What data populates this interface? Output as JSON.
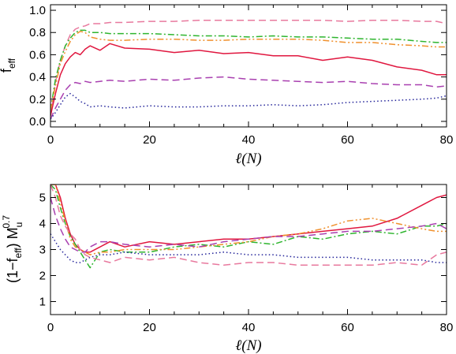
{
  "chart_data": [
    {
      "type": "line",
      "xlabel": "ℓ(N)",
      "ylabel": {
        "main": "f",
        "sub": "eff"
      },
      "xlim": [
        0,
        80
      ],
      "ylim": [
        -0.05,
        1.05
      ],
      "xticks": [
        0,
        20,
        40,
        60,
        80
      ],
      "yticks": [
        0.0,
        0.2,
        0.4,
        0.6,
        0.8,
        1.0
      ],
      "ytick_labels": [
        "0.0",
        "0.2",
        "0.4",
        "0.6",
        "0.8",
        "1.0"
      ],
      "grid": false,
      "x": [
        0,
        1,
        2,
        3,
        4,
        5,
        6,
        7,
        8,
        10,
        12,
        15,
        20,
        25,
        30,
        35,
        40,
        45,
        50,
        55,
        60,
        65,
        70,
        75,
        78,
        80
      ],
      "series": [
        {
          "color": "#e8799e",
          "style": "dashed",
          "values": [
            0.05,
            0.35,
            0.55,
            0.68,
            0.78,
            0.83,
            0.85,
            0.86,
            0.88,
            0.88,
            0.89,
            0.89,
            0.9,
            0.9,
            0.91,
            0.91,
            0.91,
            0.91,
            0.91,
            0.91,
            0.9,
            0.91,
            0.91,
            0.9,
            0.9,
            0.88
          ]
        },
        {
          "color": "#2fb52f",
          "style": "dash-dot",
          "values": [
            0.1,
            0.38,
            0.55,
            0.68,
            0.75,
            0.8,
            0.82,
            0.82,
            0.8,
            0.8,
            0.79,
            0.79,
            0.79,
            0.78,
            0.77,
            0.77,
            0.76,
            0.77,
            0.76,
            0.76,
            0.75,
            0.74,
            0.74,
            0.72,
            0.71,
            0.71
          ]
        },
        {
          "color": "#f0912e",
          "style": "dash-dot-dot",
          "values": [
            0.1,
            0.32,
            0.52,
            0.63,
            0.72,
            0.78,
            0.81,
            0.8,
            0.76,
            0.74,
            0.73,
            0.73,
            0.74,
            0.74,
            0.73,
            0.73,
            0.74,
            0.74,
            0.74,
            0.73,
            0.71,
            0.71,
            0.69,
            0.68,
            0.67,
            0.67
          ]
        },
        {
          "color": "#e0173f",
          "style": "solid",
          "values": [
            0.05,
            0.25,
            0.42,
            0.52,
            0.58,
            0.62,
            0.6,
            0.65,
            0.68,
            0.64,
            0.7,
            0.66,
            0.65,
            0.62,
            0.64,
            0.61,
            0.62,
            0.59,
            0.59,
            0.55,
            0.58,
            0.55,
            0.49,
            0.46,
            0.42,
            0.42
          ]
        },
        {
          "color": "#a940b0",
          "style": "dashed",
          "values": [
            0.02,
            0.12,
            0.2,
            0.28,
            0.33,
            0.35,
            0.34,
            0.36,
            0.35,
            0.36,
            0.37,
            0.36,
            0.38,
            0.37,
            0.39,
            0.4,
            0.38,
            0.37,
            0.36,
            0.35,
            0.36,
            0.34,
            0.33,
            0.33,
            0.31,
            0.32
          ]
        },
        {
          "color": "#24249a",
          "style": "dotted",
          "values": [
            0.02,
            0.08,
            0.15,
            0.22,
            0.25,
            0.22,
            0.18,
            0.16,
            0.13,
            0.14,
            0.13,
            0.12,
            0.14,
            0.13,
            0.13,
            0.14,
            0.14,
            0.15,
            0.14,
            0.15,
            0.17,
            0.18,
            0.19,
            0.2,
            0.21,
            0.23
          ]
        }
      ]
    },
    {
      "type": "line",
      "xlabel": "ℓ(N)",
      "ylabel": {
        "main": "(1−f",
        "sub": "eff",
        "mid": ") M",
        "sub2": "u",
        "sup": "0.7"
      },
      "xlim": [
        0,
        80
      ],
      "ylim": [
        0.5,
        5.5
      ],
      "xticks": [
        0,
        20,
        40,
        60,
        80
      ],
      "yticks": [
        1,
        2,
        3,
        4,
        5
      ],
      "ytick_labels": [
        "1",
        "2",
        "3",
        "4",
        "5"
      ],
      "grid": false,
      "x": [
        0,
        1,
        2,
        3,
        4,
        5,
        6,
        7,
        8,
        10,
        12,
        15,
        20,
        25,
        30,
        35,
        40,
        45,
        50,
        55,
        60,
        65,
        70,
        75,
        78,
        80
      ],
      "series": [
        {
          "color": "#e0173f",
          "style": "solid",
          "values": [
            5.5,
            5.5,
            5.0,
            4.2,
            3.6,
            3.2,
            3.0,
            2.9,
            2.9,
            3.1,
            3.3,
            3.1,
            3.3,
            3.2,
            3.3,
            3.4,
            3.4,
            3.5,
            3.6,
            3.7,
            3.8,
            3.9,
            4.2,
            4.7,
            5.0,
            5.1
          ]
        },
        {
          "color": "#2fb52f",
          "style": "dash-dot",
          "values": [
            5.5,
            5.3,
            4.6,
            4.0,
            3.5,
            3.2,
            2.9,
            2.6,
            2.3,
            2.9,
            3.0,
            2.9,
            2.9,
            3.1,
            3.2,
            3.1,
            3.3,
            3.2,
            3.5,
            3.4,
            3.6,
            3.7,
            3.6,
            3.9,
            3.9,
            4.0
          ]
        },
        {
          "color": "#f0912e",
          "style": "dash-dot-dot",
          "values": [
            5.5,
            5.5,
            4.8,
            4.1,
            3.4,
            3.1,
            3.0,
            2.9,
            2.8,
            2.9,
            2.9,
            3.0,
            3.0,
            3.0,
            3.1,
            3.2,
            3.3,
            3.5,
            3.6,
            3.8,
            4.1,
            4.2,
            4.0,
            3.8,
            3.7,
            3.7
          ]
        },
        {
          "color": "#a940b0",
          "style": "dashed",
          "values": [
            5.0,
            4.3,
            3.8,
            3.4,
            3.1,
            3.0,
            2.9,
            2.9,
            3.1,
            3.3,
            3.3,
            3.2,
            3.1,
            3.2,
            3.1,
            3.3,
            3.4,
            3.5,
            3.5,
            3.6,
            3.7,
            3.7,
            3.8,
            3.9,
            4.0,
            3.8
          ]
        },
        {
          "color": "#24249a",
          "style": "dotted",
          "values": [
            3.6,
            3.3,
            3.0,
            2.8,
            2.6,
            2.5,
            2.5,
            2.6,
            2.7,
            2.8,
            2.8,
            2.9,
            2.8,
            2.8,
            2.8,
            2.9,
            2.8,
            2.8,
            2.7,
            2.7,
            2.7,
            2.6,
            2.6,
            2.6,
            2.5,
            2.5
          ]
        },
        {
          "color": "#e8799e",
          "style": "dashed",
          "values": [
            5.5,
            5.0,
            4.3,
            3.9,
            3.6,
            3.4,
            3.0,
            2.8,
            2.7,
            2.6,
            2.5,
            2.7,
            2.6,
            2.7,
            2.5,
            2.4,
            2.5,
            2.5,
            2.4,
            2.4,
            2.4,
            2.4,
            2.5,
            2.4,
            2.8,
            2.9
          ]
        }
      ]
    }
  ]
}
